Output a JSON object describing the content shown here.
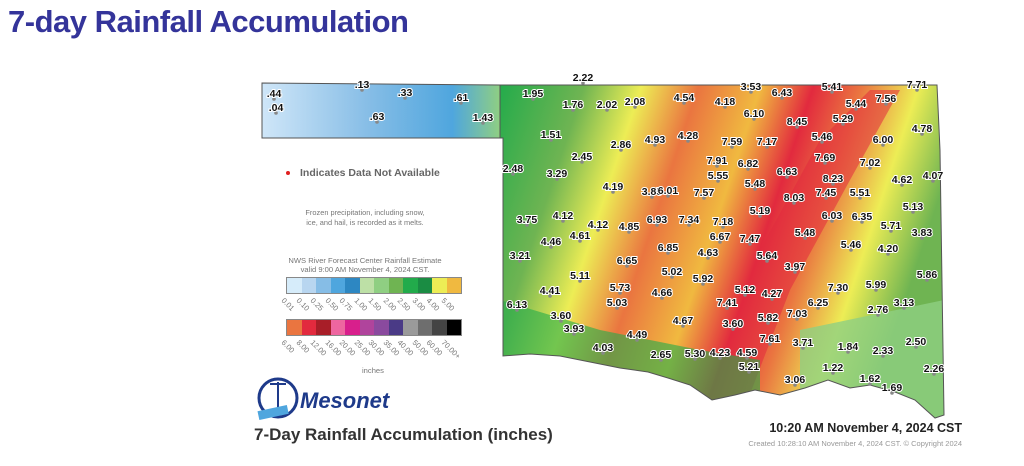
{
  "title": "7-day Rainfall Accumulation",
  "legend": {
    "not_available": "Indicates Data Not Available",
    "not_available_color": "#e02020",
    "frozen_note": "Frozen precipitation, including snow, ice, and hail, is recorded as it melts.",
    "source_line1": "NWS River Forecast Center Rainfall Estimate",
    "source_line2": "valid 9:00 AM November 4, 2024 CST.",
    "row1": [
      {
        "label": "0.01",
        "color": "#d6ecfa"
      },
      {
        "label": "0.10",
        "color": "#b8d6f0"
      },
      {
        "label": "0.25",
        "color": "#86bde6"
      },
      {
        "label": "0.50",
        "color": "#4fa6de"
      },
      {
        "label": "0.75",
        "color": "#2d87c2"
      },
      {
        "label": "1.00",
        "color": "#bde0a6"
      },
      {
        "label": "1.50",
        "color": "#8fcf82"
      },
      {
        "label": "2.00",
        "color": "#6fb452"
      },
      {
        "label": "2.50",
        "color": "#22ab4b"
      },
      {
        "label": "3.00",
        "color": "#1a8c43"
      },
      {
        "label": "4.00",
        "color": "#eded55"
      },
      {
        "label": "5.00",
        "color": "#f0b940"
      }
    ],
    "row2": [
      {
        "label": "6.00",
        "color": "#ea7540"
      },
      {
        "label": "8.00",
        "color": "#e22a3e"
      },
      {
        "label": "12.00",
        "color": "#a81e28"
      },
      {
        "label": "16.00",
        "color": "#ee66a0"
      },
      {
        "label": "20.00",
        "color": "#d81f8c"
      },
      {
        "label": "25.00",
        "color": "#b0449c"
      },
      {
        "label": "30.00",
        "color": "#8a4a9e"
      },
      {
        "label": "35.00",
        "color": "#4a3a86"
      },
      {
        "label": "40.00",
        "color": "#9a9a9a"
      },
      {
        "label": "50.00",
        "color": "#6e6e6e"
      },
      {
        "label": "60.00",
        "color": "#444444"
      },
      {
        "label": "70.00+",
        "color": "#000000"
      }
    ],
    "units": "inches"
  },
  "logo": {
    "name": "Mesonet",
    "badge": "30 YEARS"
  },
  "footer": {
    "subtitle": "7-Day Rainfall Accumulation (inches)",
    "timestamp": "10:20 AM November 4, 2024 CST",
    "created": "Created 10:28:10 AM November 4, 2024 CST. © Copyright 2024"
  },
  "stations": [
    ".44",
    ".04",
    ".13",
    ".33",
    ".63",
    ".61",
    "1.43",
    "2.22",
    "1.95",
    "1.76",
    "2.02",
    "2.08",
    "4.54",
    "4.18",
    "3.53",
    "6.43",
    "5.41",
    "7.71",
    "5.44",
    "7.56",
    "6.10",
    "5.29",
    "8.45",
    "5.46",
    "4.78",
    "1.51",
    "2.86",
    "4.93",
    "4.28",
    "7.59",
    "7.17",
    "6.00",
    "2.45",
    "7.91",
    "6.82",
    "7.69",
    "7.02",
    "2.48",
    "3.29",
    "5.55",
    "5.48",
    "6.63",
    "4.62",
    "4.07",
    "4.19",
    "3.85",
    "6.01",
    "7.57",
    "8.23",
    "8.03",
    "7.45",
    "5.51",
    "5.13",
    "3.75",
    "4.12",
    "4.12",
    "4.85",
    "6.93",
    "7.34",
    "7.18",
    "5.19",
    "6.03",
    "6.35",
    "5.71",
    "4.46",
    "4.61",
    "6.67",
    "7.47",
    "3.83",
    "5.48",
    "6.85",
    "4.63",
    "5.46",
    "4.20",
    "3.21",
    "6.65",
    "5.64",
    "3.97",
    "5.86",
    "5.11",
    "5.02",
    "5.92",
    "5.73",
    "4.41",
    "4.66",
    "5.12",
    "4.27",
    "7.30",
    "5.99",
    "6.25",
    "6.13",
    "5.03",
    "7.41",
    "2.76",
    "3.13",
    "7.03",
    "3.60",
    "4.67",
    "3.60",
    "5.82",
    "3.93",
    "4.49",
    "7.61",
    "3.71",
    "1.84",
    "2.33",
    "2.50",
    "4.03",
    "2.65",
    "5.30",
    "4.23",
    "4.59",
    "5.21",
    "1.22",
    "2.26",
    "3.06",
    "1.62",
    "1.69"
  ]
}
